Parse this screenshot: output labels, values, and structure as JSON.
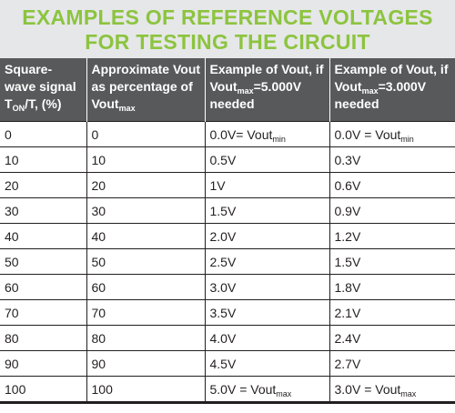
{
  "title": [
    "EXAMPLES OF REFERENCE VOLTAGES",
    "FOR TESTING THE CIRCUIT"
  ],
  "table": {
    "header": [
      [
        {
          "text": "Square-wave signal T"
        },
        {
          "sub": "ON"
        },
        {
          "text": "/T, (%)"
        }
      ],
      [
        {
          "text": "Approximate Vout as percentage of Vout"
        },
        {
          "sub": "max"
        }
      ],
      [
        {
          "text": "Example of Vout, if Vout"
        },
        {
          "sub": "max"
        },
        {
          "text": "=5.000V needed"
        }
      ],
      [
        {
          "text": "Example of Vout, if Vout"
        },
        {
          "sub": "max"
        },
        {
          "text": "=3.000V needed"
        }
      ]
    ],
    "rows": [
      [
        "0",
        "0",
        [
          {
            "text": "0.0V= Vout"
          },
          {
            "sub": "min"
          }
        ],
        [
          {
            "text": "0.0V = Vout"
          },
          {
            "sub": "min"
          }
        ]
      ],
      [
        "10",
        "10",
        "0.5V",
        "0.3V"
      ],
      [
        "20",
        "20",
        "1V",
        "0.6V"
      ],
      [
        "30",
        "30",
        "1.5V",
        "0.9V"
      ],
      [
        "40",
        "40",
        "2.0V",
        "1.2V"
      ],
      [
        "50",
        "50",
        "2.5V",
        "1.5V"
      ],
      [
        "60",
        "60",
        "3.0V",
        "1.8V"
      ],
      [
        "70",
        "70",
        "3.5V",
        "2.1V"
      ],
      [
        "80",
        "80",
        "4.0V",
        "2.4V"
      ],
      [
        "90",
        "90",
        "4.5V",
        "2.7V"
      ],
      [
        "100",
        "100",
        [
          {
            "text": "5.0V = Vout"
          },
          {
            "sub": "max"
          }
        ],
        [
          {
            "text": "3.0V = Vout"
          },
          {
            "sub": "max"
          }
        ]
      ]
    ]
  }
}
